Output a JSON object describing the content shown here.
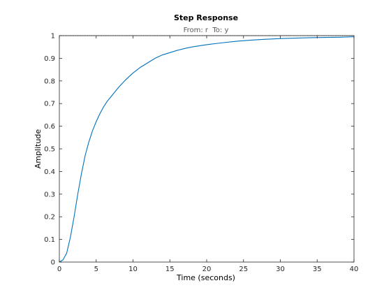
{
  "figure": {
    "title": "Step Response",
    "subtitle": "From: r  To: y"
  },
  "colors": {
    "response_line": "#0072bd",
    "axis": "#262626",
    "reference_line": "#000000",
    "background": "#ffffff"
  },
  "chart_data": {
    "type": "line",
    "title": "Step Response",
    "subtitle": "From: r  To: y",
    "xlabel": "Time (seconds)",
    "ylabel": "Amplitude",
    "xlim": [
      0,
      40
    ],
    "ylim": [
      0,
      1
    ],
    "xticks": [
      0,
      5,
      10,
      15,
      20,
      25,
      30,
      35,
      40
    ],
    "yticks": [
      0,
      0.1,
      0.2,
      0.3,
      0.4,
      0.5,
      0.6,
      0.7,
      0.8,
      0.9,
      1
    ],
    "grid": false,
    "reference_line": {
      "y": 1,
      "style": "dotted"
    },
    "series": [
      {
        "x": [
          0,
          0.5,
          1,
          1.5,
          2,
          2.5,
          3,
          3.5,
          4,
          4.5,
          5,
          5.5,
          6,
          6.5,
          7,
          7.5,
          8,
          9,
          10,
          11,
          12,
          13,
          14,
          15,
          16,
          17,
          18,
          19,
          20,
          22,
          24,
          26,
          28,
          30,
          32,
          34,
          36,
          38,
          40
        ],
        "y": [
          0,
          0.01,
          0.04,
          0.11,
          0.2,
          0.3,
          0.39,
          0.47,
          0.53,
          0.58,
          0.62,
          0.655,
          0.685,
          0.71,
          0.73,
          0.75,
          0.77,
          0.805,
          0.835,
          0.86,
          0.88,
          0.9,
          0.915,
          0.925,
          0.935,
          0.943,
          0.95,
          0.955,
          0.96,
          0.968,
          0.975,
          0.98,
          0.984,
          0.987,
          0.989,
          0.991,
          0.992,
          0.993,
          0.995
        ]
      }
    ]
  }
}
